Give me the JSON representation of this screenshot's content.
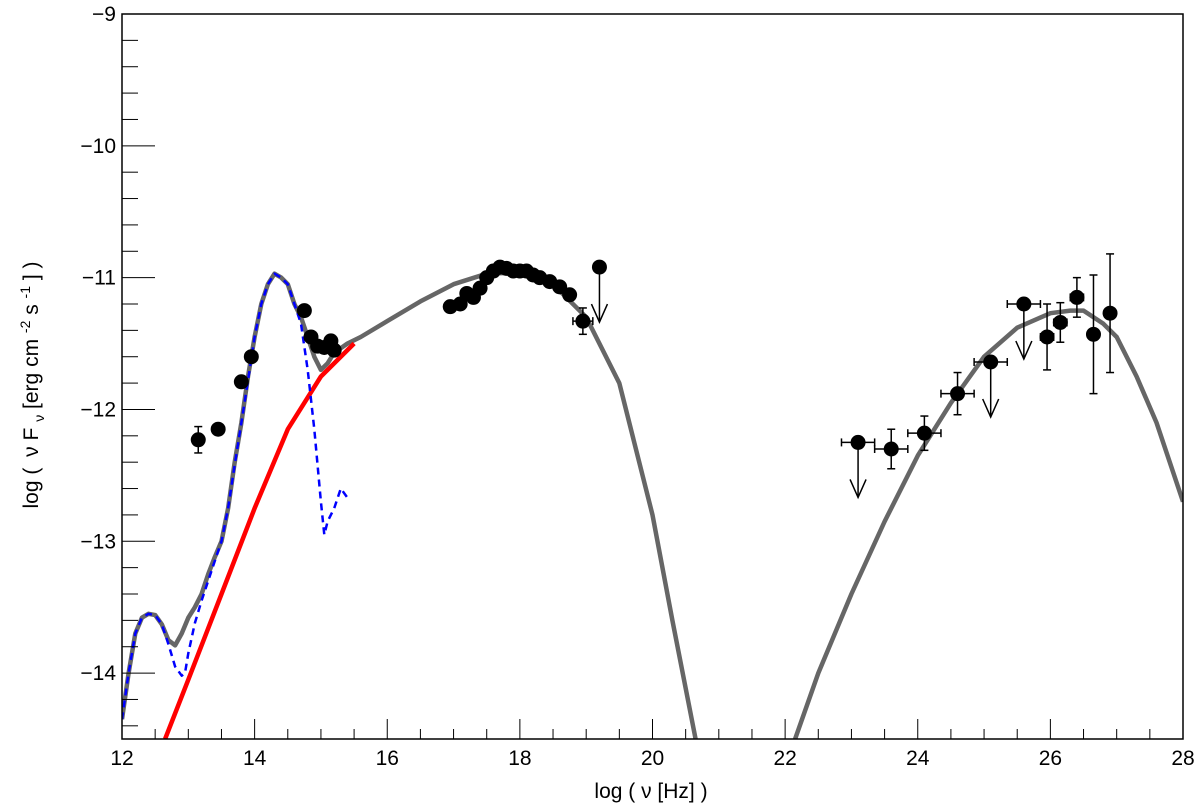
{
  "chart_data": {
    "type": "scatter",
    "title": "",
    "xlabel": "log ( ν [Hz] )",
    "ylabel": "log (ν F_ν [erg cm^-2 s^-1] )",
    "ylabel_parts": {
      "a": "log (",
      "b": "ν F",
      "c": "ν",
      "d": " [erg cm",
      "e": "-2",
      "f": " s",
      "g": "-1",
      "h": "] )"
    },
    "xlim": [
      12,
      28
    ],
    "ylim": [
      -14.5,
      -9
    ],
    "x_ticks": [
      12,
      14,
      16,
      18,
      20,
      22,
      24,
      26,
      28
    ],
    "x_tick_labels": [
      "12",
      "14",
      "16",
      "18",
      "20",
      "22",
      "24",
      "26",
      "28"
    ],
    "y_ticks": [
      -14,
      -13,
      -12,
      -11,
      -10,
      -9
    ],
    "y_tick_labels": [
      "−14",
      "−13",
      "−12",
      "−11",
      "−10",
      "−9"
    ],
    "grid": false,
    "colors": {
      "total_model": "#666666",
      "synchrotron_jet": "#ff0000",
      "thermal_components": "#0000ff",
      "data": "#000000"
    },
    "series": [
      {
        "name": "total_model_low",
        "kind": "line",
        "color": "#666666",
        "x": [
          12.0,
          12.1,
          12.2,
          12.3,
          12.4,
          12.5,
          12.6,
          12.7,
          12.8,
          12.9,
          13.0,
          13.1,
          13.2,
          13.3,
          13.4,
          13.5,
          13.6,
          13.7,
          13.8,
          13.9,
          14.0,
          14.1,
          14.2,
          14.3,
          14.4,
          14.5,
          14.6,
          14.7,
          14.8,
          14.9,
          15.0,
          15.1,
          15.2,
          15.4,
          15.6,
          16.0,
          16.5,
          17.0,
          17.5,
          18.0,
          18.5,
          19.0,
          19.5,
          20.0,
          20.3,
          20.65
        ],
        "y": [
          -14.35,
          -14.0,
          -13.7,
          -13.58,
          -13.55,
          -13.56,
          -13.63,
          -13.75,
          -13.79,
          -13.7,
          -13.58,
          -13.5,
          -13.4,
          -13.25,
          -13.12,
          -13.0,
          -12.75,
          -12.4,
          -12.1,
          -11.75,
          -11.45,
          -11.2,
          -11.05,
          -10.97,
          -11.0,
          -11.05,
          -11.2,
          -11.3,
          -11.45,
          -11.6,
          -11.7,
          -11.65,
          -11.57,
          -11.5,
          -11.45,
          -11.33,
          -11.18,
          -11.05,
          -10.97,
          -10.96,
          -11.05,
          -11.3,
          -11.8,
          -12.8,
          -13.6,
          -14.5
        ]
      },
      {
        "name": "total_model_high",
        "kind": "line",
        "color": "#666666",
        "x": [
          22.15,
          22.5,
          23.0,
          23.5,
          24.0,
          24.5,
          25.0,
          25.5,
          26.0,
          26.3,
          26.5,
          26.8,
          27.0,
          27.3,
          27.6,
          28.0
        ],
        "y": [
          -14.5,
          -14.0,
          -13.4,
          -12.85,
          -12.35,
          -11.95,
          -11.6,
          -11.38,
          -11.27,
          -11.25,
          -11.25,
          -11.35,
          -11.45,
          -11.75,
          -12.1,
          -12.7
        ]
      },
      {
        "name": "synchrotron_jet",
        "kind": "line",
        "color": "#ff0000",
        "x": [
          12.65,
          13.0,
          13.5,
          14.0,
          14.5,
          15.0,
          15.5
        ],
        "y": [
          -14.5,
          -14.05,
          -13.4,
          -12.75,
          -12.15,
          -11.75,
          -11.5
        ]
      },
      {
        "name": "thermal_components",
        "kind": "dashed-line",
        "color": "#0000ff",
        "x": [
          12.0,
          12.1,
          12.2,
          12.3,
          12.4,
          12.5,
          12.6,
          12.7,
          12.8,
          12.9,
          12.95,
          13.0,
          13.1,
          13.2,
          13.3,
          13.4,
          13.5,
          13.6,
          13.7,
          13.8,
          13.9,
          14.0,
          14.1,
          14.2,
          14.3,
          14.4,
          14.5,
          14.6,
          14.7,
          14.8,
          14.9,
          15.0,
          15.05,
          15.1,
          15.2,
          15.3,
          15.4
        ],
        "y": [
          -14.35,
          -14.0,
          -13.7,
          -13.58,
          -13.55,
          -13.56,
          -13.63,
          -13.78,
          -13.95,
          -14.02,
          -14.0,
          -13.85,
          -13.62,
          -13.45,
          -13.3,
          -13.15,
          -13.0,
          -12.75,
          -12.42,
          -12.1,
          -11.78,
          -11.45,
          -11.2,
          -11.05,
          -10.97,
          -11.0,
          -11.05,
          -11.2,
          -11.35,
          -11.7,
          -12.15,
          -12.7,
          -12.95,
          -12.85,
          -12.75,
          -12.6,
          -12.67
        ]
      }
    ],
    "points": [
      {
        "x": 13.15,
        "y": -12.23,
        "yerr": 0.1
      },
      {
        "x": 13.45,
        "y": -12.15
      },
      {
        "x": 13.8,
        "y": -11.79
      },
      {
        "x": 13.95,
        "y": -11.6
      },
      {
        "x": 14.75,
        "y": -11.25
      },
      {
        "x": 14.85,
        "y": -11.45
      },
      {
        "x": 14.95,
        "y": -11.52
      },
      {
        "x": 15.05,
        "y": -11.53
      },
      {
        "x": 15.15,
        "y": -11.48
      },
      {
        "x": 15.2,
        "y": -11.55
      },
      {
        "x": 16.95,
        "y": -11.22
      },
      {
        "x": 17.1,
        "y": -11.2
      },
      {
        "x": 17.2,
        "y": -11.12
      },
      {
        "x": 17.3,
        "y": -11.15
      },
      {
        "x": 17.4,
        "y": -11.08
      },
      {
        "x": 17.5,
        "y": -11.0
      },
      {
        "x": 17.6,
        "y": -10.95
      },
      {
        "x": 17.7,
        "y": -10.92
      },
      {
        "x": 17.8,
        "y": -10.93
      },
      {
        "x": 17.9,
        "y": -10.95
      },
      {
        "x": 18.0,
        "y": -10.95
      },
      {
        "x": 18.1,
        "y": -10.95
      },
      {
        "x": 18.2,
        "y": -10.98
      },
      {
        "x": 18.3,
        "y": -11.0
      },
      {
        "x": 18.45,
        "y": -11.03
      },
      {
        "x": 18.6,
        "y": -11.07
      },
      {
        "x": 18.75,
        "y": -11.13
      },
      {
        "x": 18.95,
        "y": -11.33,
        "yerr": 0.1,
        "xerr": 0.15
      },
      {
        "x": 19.2,
        "y": -10.92,
        "upper_limit": true
      },
      {
        "x": 23.1,
        "y": -12.25,
        "xerr": 0.25,
        "upper_limit": true
      },
      {
        "x": 23.6,
        "y": -12.3,
        "xerr": 0.25,
        "yerr": 0.15
      },
      {
        "x": 24.1,
        "y": -12.18,
        "xerr": 0.25,
        "yerr": 0.13
      },
      {
        "x": 24.6,
        "y": -11.88,
        "xerr": 0.25,
        "yerr": 0.16
      },
      {
        "x": 25.1,
        "y": -11.64,
        "xerr": 0.25,
        "upper_limit": true
      },
      {
        "x": 25.6,
        "y": -11.2,
        "xerr": 0.25,
        "upper_limit": true
      },
      {
        "x": 25.95,
        "y": -11.45,
        "xerr": 0.1,
        "yerr": 0.25
      },
      {
        "x": 26.15,
        "y": -11.34,
        "xerr": 0.1,
        "yerr": 0.15
      },
      {
        "x": 26.4,
        "y": -11.15,
        "xerr": 0.1,
        "yerr": 0.15
      },
      {
        "x": 26.65,
        "y": -11.43,
        "yerr": 0.45
      },
      {
        "x": 26.9,
        "y": -11.27,
        "yerr": 0.45
      }
    ]
  }
}
